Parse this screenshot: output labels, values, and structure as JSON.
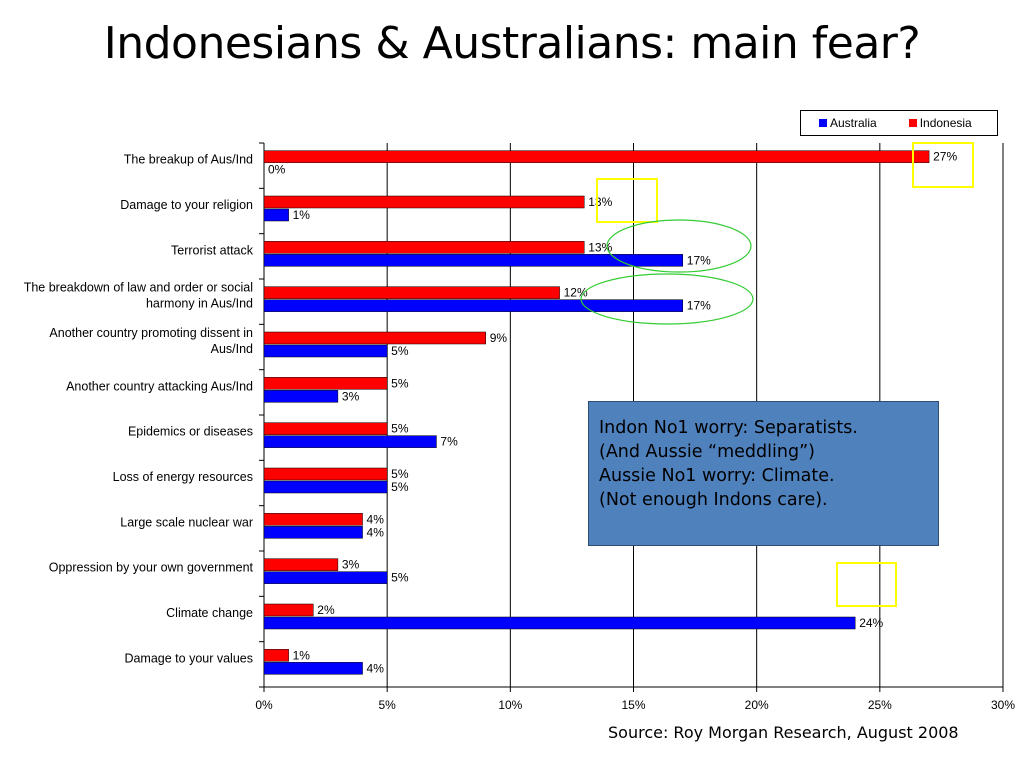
{
  "title": "Indonesians & Australians: main fear?",
  "source": "Source: Roy Morgan Research, August 2008",
  "callout": {
    "lines": [
      "Indon No1 worry: Separatists.",
      "(And Aussie “meddling”)",
      "Aussie No1 worry: Climate.",
      "(Not enough Indons care)."
    ]
  },
  "colors": {
    "australia": "#0000ff",
    "indonesia": "#ff0000",
    "highlight_box": "#ffff00",
    "highlight_ellipse": "#33cc33",
    "callout_bg": "#4f81bd"
  },
  "chart_data": {
    "type": "bar",
    "orientation": "horizontal",
    "categories": [
      [
        "The breakup of Aus/Ind"
      ],
      [
        "Damage to your religion"
      ],
      [
        "Terrorist attack"
      ],
      [
        "The breakdown of law and order or social",
        "harmony in Aus/Ind"
      ],
      [
        "Another country promoting dissent in",
        "Aus/Ind"
      ],
      [
        "Another country attacking Aus/Ind"
      ],
      [
        "Epidemics or diseases"
      ],
      [
        "Loss of energy resources"
      ],
      [
        "Large scale nuclear war"
      ],
      [
        "Oppression by your own government"
      ],
      [
        "Climate change"
      ],
      [
        "Damage to your values"
      ]
    ],
    "series": [
      {
        "name": "Indonesia",
        "values": [
          27,
          13,
          13,
          12,
          9,
          5,
          5,
          5,
          4,
          3,
          2,
          1
        ],
        "labels": [
          "27%",
          "13%",
          "13%",
          "12%",
          "9%",
          "5%",
          "5%",
          "5%",
          "4%",
          "3%",
          "2%",
          "1%"
        ]
      },
      {
        "name": "Australia",
        "values": [
          0,
          1,
          17,
          17,
          5,
          3,
          7,
          5,
          4,
          5,
          24,
          4
        ],
        "labels": [
          "0%",
          "1%",
          "17%",
          "17%",
          "5%",
          "3%",
          "7%",
          "5%",
          "4%",
          "5%",
          "24%",
          "4%"
        ]
      }
    ],
    "legend_order": [
      "Australia",
      "Indonesia"
    ],
    "xlim": [
      0,
      30
    ],
    "xticks": [
      0,
      5,
      10,
      15,
      20,
      25,
      30
    ],
    "xtick_labels": [
      "0%",
      "5%",
      "10%",
      "15%",
      "20%",
      "25%",
      "30%"
    ],
    "grid": "vertical",
    "legend": "top-right",
    "annotations": [
      {
        "shape": "box",
        "color": "yellow",
        "around": "Indonesia: The breakup of Aus/Ind",
        "at_value": 27
      },
      {
        "shape": "box",
        "color": "yellow",
        "around": "Indonesia: Damage to your religion",
        "at_value": 14.5
      },
      {
        "shape": "ellipse",
        "color": "green",
        "around": "Australia: Terrorist attack",
        "at_value": 16
      },
      {
        "shape": "ellipse",
        "color": "green",
        "around": "Australia: The breakdown of law and order or social harmony in Aus/Ind",
        "at_value": 16
      },
      {
        "shape": "box",
        "color": "yellow",
        "around": "Climate change",
        "at_value": 24.5
      }
    ]
  }
}
